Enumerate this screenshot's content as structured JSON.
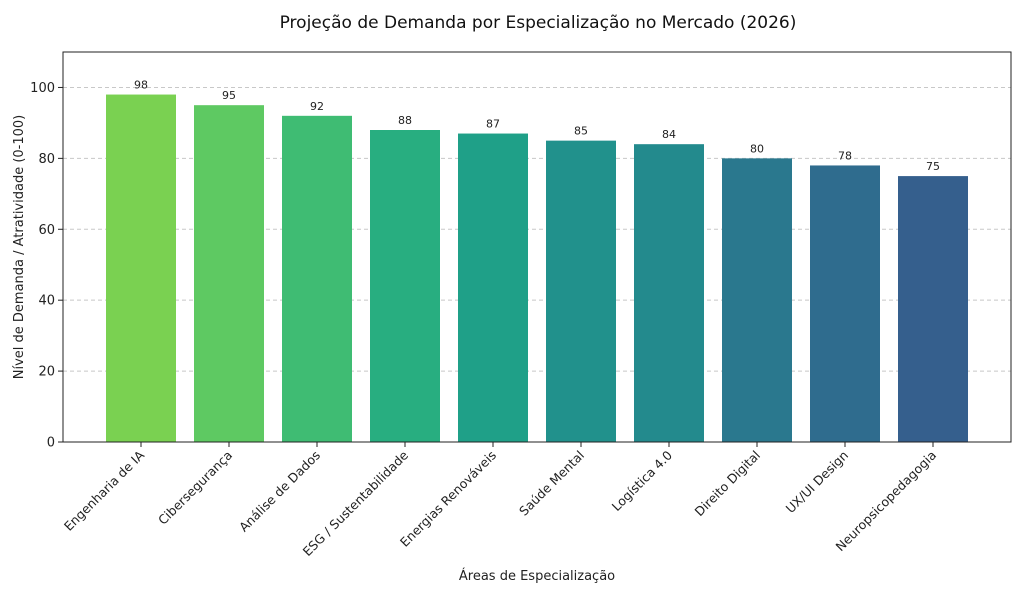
{
  "chart_data": {
    "type": "bar",
    "title": "Projeção de Demanda por Especialização no Mercado (2026)",
    "xlabel": "Áreas de Especialização",
    "ylabel": "Nível de Demanda / Atratividade (0-100)",
    "categories": [
      "Engenharia de IA",
      "Cibersegurança",
      "Análise de Dados",
      "ESG / Sustentabilidade",
      "Energias Renováveis",
      "Saúde Mental",
      "Logística 4.0",
      "Direito Digital",
      "UX/UI Design",
      "Neuropsicopedagogia"
    ],
    "values": [
      98,
      95,
      92,
      88,
      87,
      85,
      84,
      80,
      78,
      75
    ],
    "colors": [
      "#7ad151",
      "#5ec962",
      "#3fbc73",
      "#28ae80",
      "#1fa088",
      "#21918c",
      "#238a8d",
      "#2a788e",
      "#2f6c8e",
      "#355f8d"
    ],
    "ylim": [
      0,
      110
    ],
    "yticks": [
      0,
      20,
      40,
      60,
      80,
      100
    ],
    "grid": "y-dashed",
    "legend": "none"
  }
}
